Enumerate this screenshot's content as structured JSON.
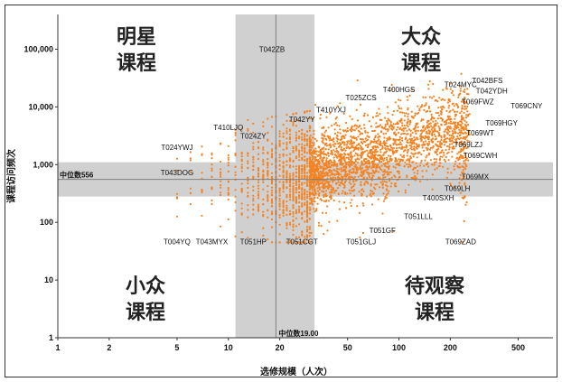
{
  "chart_data": {
    "type": "scatter",
    "xlabel": "选修规模（人次）",
    "ylabel": "课程访问频次",
    "x_scale": "log",
    "y_scale": "log",
    "xlim": [
      1,
      800
    ],
    "ylim": [
      1,
      400000
    ],
    "x_ticks": [
      1,
      2,
      5,
      10,
      20,
      50,
      100,
      200,
      500
    ],
    "x_tick_labels": [
      "1",
      "2",
      "5",
      "10",
      "20",
      "50",
      "100",
      "200",
      "500"
    ],
    "y_ticks": [
      1,
      10,
      100,
      1000,
      10000,
      100000
    ],
    "y_tick_labels": [
      "1",
      "10",
      "100",
      "1,000",
      "10,000",
      "100,000"
    ],
    "colors": {
      "points": "#f58220",
      "band": "#d0d0d0",
      "median_line": "#808080"
    },
    "median_x": {
      "value": 19.0,
      "label": "中位数19.00",
      "band": [
        11,
        32
      ]
    },
    "median_y": {
      "value": 556,
      "label": "中位数556",
      "band": [
        280,
        1100
      ]
    },
    "quadrants": [
      {
        "id": "star",
        "lines": [
          "明星",
          "课程"
        ],
        "position": "top-left"
      },
      {
        "id": "popular",
        "lines": [
          "大众",
          "课程"
        ],
        "position": "top-right"
      },
      {
        "id": "niche",
        "lines": [
          "小众",
          "课程"
        ],
        "position": "bottom-left"
      },
      {
        "id": "watch",
        "lines": [
          "待观察",
          "课程"
        ],
        "position": "bottom-right"
      }
    ],
    "annotated_points": [
      {
        "label": "T042ZB",
        "x": 18,
        "y": 90000
      },
      {
        "label": "T024YWJ",
        "x": 5,
        "y": 1800
      },
      {
        "label": "T043DOG",
        "x": 5,
        "y": 650
      },
      {
        "label": "T410LJQ",
        "x": 10,
        "y": 4000
      },
      {
        "label": "T024ZY",
        "x": 14,
        "y": 2800
      },
      {
        "label": "T042YY",
        "x": 27,
        "y": 5500
      },
      {
        "label": "T410YXJ",
        "x": 40,
        "y": 8000
      },
      {
        "label": "T025ZCS",
        "x": 60,
        "y": 13000
      },
      {
        "label": "T400HGS",
        "x": 100,
        "y": 18000
      },
      {
        "label": "T024MYC",
        "x": 230,
        "y": 22000
      },
      {
        "label": "T042BFS",
        "x": 330,
        "y": 26000
      },
      {
        "label": "T042YDH",
        "x": 350,
        "y": 17000
      },
      {
        "label": "T069FWZ",
        "x": 290,
        "y": 11000
      },
      {
        "label": "T069CNY",
        "x": 560,
        "y": 9500
      },
      {
        "label": "T069HGY",
        "x": 400,
        "y": 4800
      },
      {
        "label": "T069WT",
        "x": 300,
        "y": 3200
      },
      {
        "label": "T069LZJ",
        "x": 255,
        "y": 2000
      },
      {
        "label": "T069CWH",
        "x": 300,
        "y": 1300
      },
      {
        "label": "T069MX",
        "x": 280,
        "y": 560
      },
      {
        "label": "T069LH",
        "x": 220,
        "y": 350
      },
      {
        "label": "T400SXH",
        "x": 170,
        "y": 240
      },
      {
        "label": "T051LLL",
        "x": 130,
        "y": 115
      },
      {
        "label": "T051GF",
        "x": 80,
        "y": 65
      },
      {
        "label": "T051GLJ",
        "x": 60,
        "y": 42
      },
      {
        "label": "T069ZAD",
        "x": 230,
        "y": 42
      },
      {
        "label": "T004YQ",
        "x": 5,
        "y": 42
      },
      {
        "label": "T043MYX",
        "x": 8,
        "y": 42
      },
      {
        "label": "T051HP",
        "x": 14,
        "y": 42
      },
      {
        "label": "T051CGT",
        "x": 27,
        "y": 42
      }
    ]
  }
}
